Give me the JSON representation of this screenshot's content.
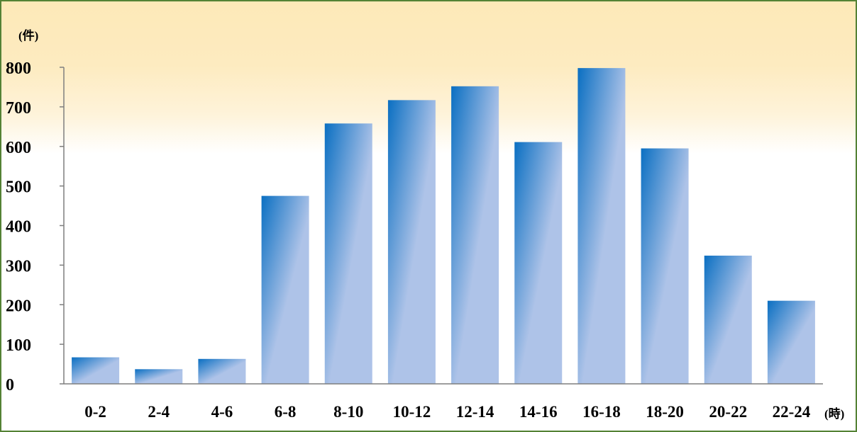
{
  "chart_data": {
    "type": "bar",
    "categories": [
      "0-2",
      "2-4",
      "4-6",
      "6-8",
      "8-10",
      "10-12",
      "12-14",
      "14-16",
      "16-18",
      "18-20",
      "20-22",
      "22-24"
    ],
    "values": [
      67,
      37,
      63,
      475,
      658,
      717,
      752,
      611,
      798,
      595,
      324,
      210
    ],
    "y_unit": "(件)",
    "x_unit": "(時)",
    "ylim": [
      0,
      800
    ],
    "yticks": [
      0,
      100,
      200,
      300,
      400,
      500,
      600,
      700,
      800
    ],
    "grid": false,
    "legend": "none",
    "bar_color_start": "#0a6fc2",
    "bar_color_end": "#aec3e8"
  },
  "colors": {
    "border": "#548235",
    "background_top": "#fde9b8"
  }
}
